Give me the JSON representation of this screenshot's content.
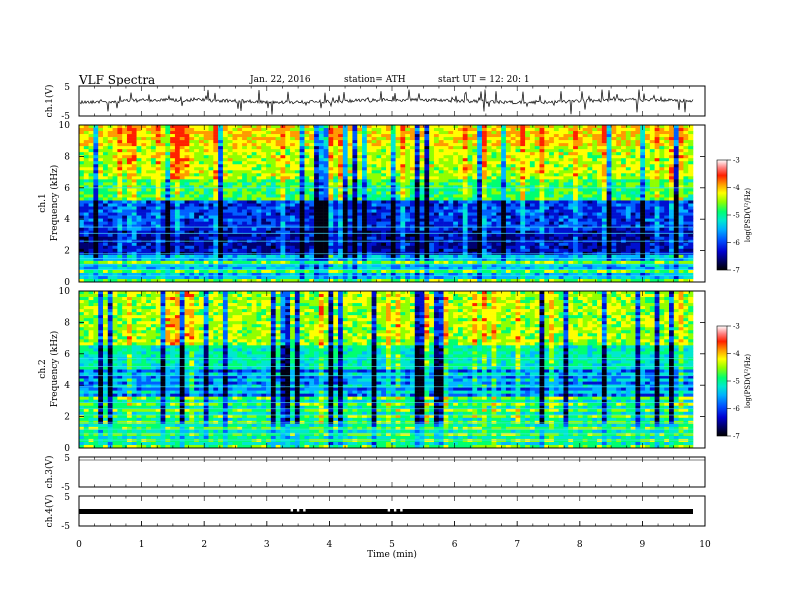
{
  "header": {
    "title": "VLF Spectra",
    "date": "Jan. 22, 2016",
    "station": "station= ATH",
    "start": "start UT =   12: 20: 1"
  },
  "chart_data": [
    {
      "type": "line",
      "ylabel": "ch.1(V)",
      "ylim": [
        -5,
        5
      ],
      "yticks": [
        "5",
        "-5"
      ],
      "xlim": [
        0,
        10
      ],
      "description_series": [
        {
          "name": "",
          "values_note": "noisy waveform near 0 V with spikes"
        }
      ]
    },
    {
      "type": "heatmap",
      "ylabel": "ch.1\nFrequency (kHz)",
      "ylabel_lines": [
        "ch.1",
        "Frequency (kHz)"
      ],
      "ylim": [
        0,
        10
      ],
      "yticks": [
        "0",
        "2",
        "4",
        "6",
        "8",
        "10"
      ],
      "xlim": [
        0,
        10
      ],
      "colorbar": {
        "label": "log(PSD(V²/Hz)",
        "range": [
          -7,
          -3
        ],
        "ticks": [
          "-3",
          "-4",
          "-5",
          "-6",
          "-7"
        ]
      }
    },
    {
      "type": "heatmap",
      "ylabel_lines": [
        "ch.2",
        "Frequency (kHz)"
      ],
      "ylim": [
        0,
        10
      ],
      "yticks": [
        "0",
        "2",
        "4",
        "6",
        "8",
        "10"
      ],
      "xlim": [
        0,
        10
      ],
      "colorbar": {
        "label": "log(PSD(V²/Hz)",
        "range": [
          -7,
          -3
        ],
        "ticks": [
          "-3",
          "-4",
          "-5",
          "-6",
          "-7"
        ]
      }
    },
    {
      "type": "line",
      "ylabel": "ch.3(V)",
      "ylim": [
        -5,
        5
      ],
      "yticks": [
        "5",
        "-5"
      ],
      "xlim": [
        0,
        10
      ]
    },
    {
      "type": "line",
      "ylabel": "ch.4(V)",
      "ylim": [
        -5,
        5
      ],
      "yticks": [
        "5",
        "-5"
      ],
      "xlim": [
        0,
        10
      ],
      "xlabel": "Time (min)",
      "xticks": [
        "0",
        "1",
        "2",
        "3",
        "4",
        "5",
        "6",
        "7",
        "8",
        "9",
        "10"
      ]
    }
  ],
  "colors": {
    "axis": "#000000",
    "colormap": [
      "#000000",
      "#000060",
      "#0000c0",
      "#0040ff",
      "#00a0ff",
      "#00e0e0",
      "#00ff80",
      "#80ff00",
      "#ffff00",
      "#ffa000",
      "#ff3000",
      "#ff8080",
      "#ffffff"
    ]
  }
}
